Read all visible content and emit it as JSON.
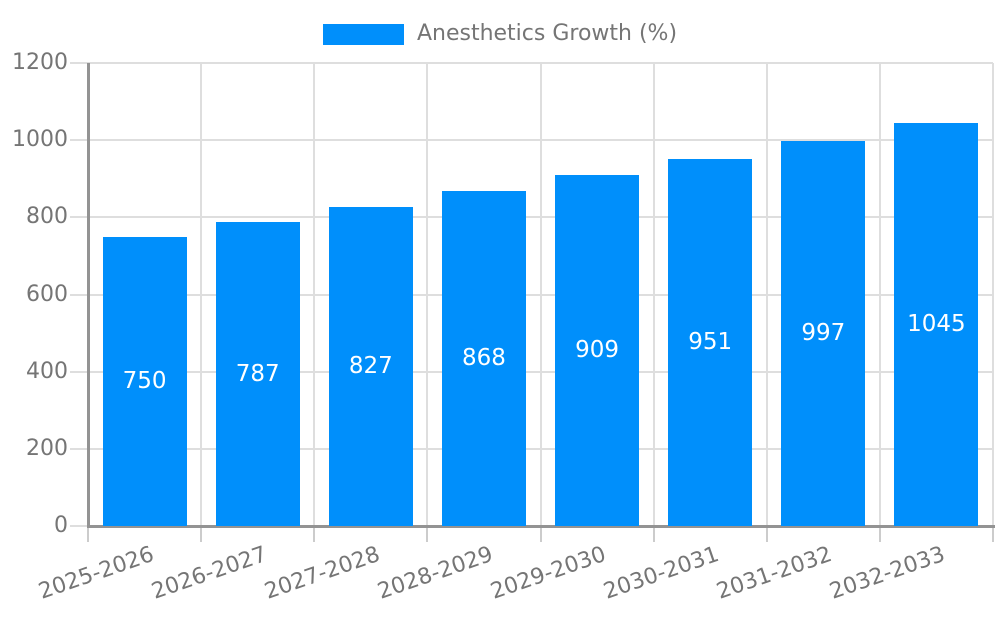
{
  "legend": {
    "label": "Anesthetics Growth (%)"
  },
  "colors": {
    "bar": "#008FFB",
    "axis_text": "#757575",
    "value_text": "#ffffff",
    "gridline": "#dedede",
    "tick": "#cccccc",
    "axis_line": "#939393",
    "background": "#ffffff"
  },
  "chart_data": {
    "type": "bar",
    "title": "",
    "legend_entries": [
      "Anesthetics Growth (%)"
    ],
    "legend_position": "top-center",
    "categories": [
      "2025-2026",
      "2026-2027",
      "2027-2028",
      "2028-2029",
      "2029-2030",
      "2030-2031",
      "2031-2032",
      "2032-2033"
    ],
    "values": [
      750,
      787,
      827,
      868,
      909,
      951,
      997,
      1045
    ],
    "value_labels": [
      750,
      787,
      827,
      868,
      909,
      951,
      997,
      1045
    ],
    "value_labels_position": "inside-center-white",
    "xlabel": "",
    "ylabel": "",
    "ylim": [
      0,
      1200
    ],
    "yticks": [
      0,
      200,
      400,
      600,
      800,
      1000,
      1200
    ],
    "grid": "horizontal-and-vertical",
    "x_label_rotation_deg": -19
  }
}
